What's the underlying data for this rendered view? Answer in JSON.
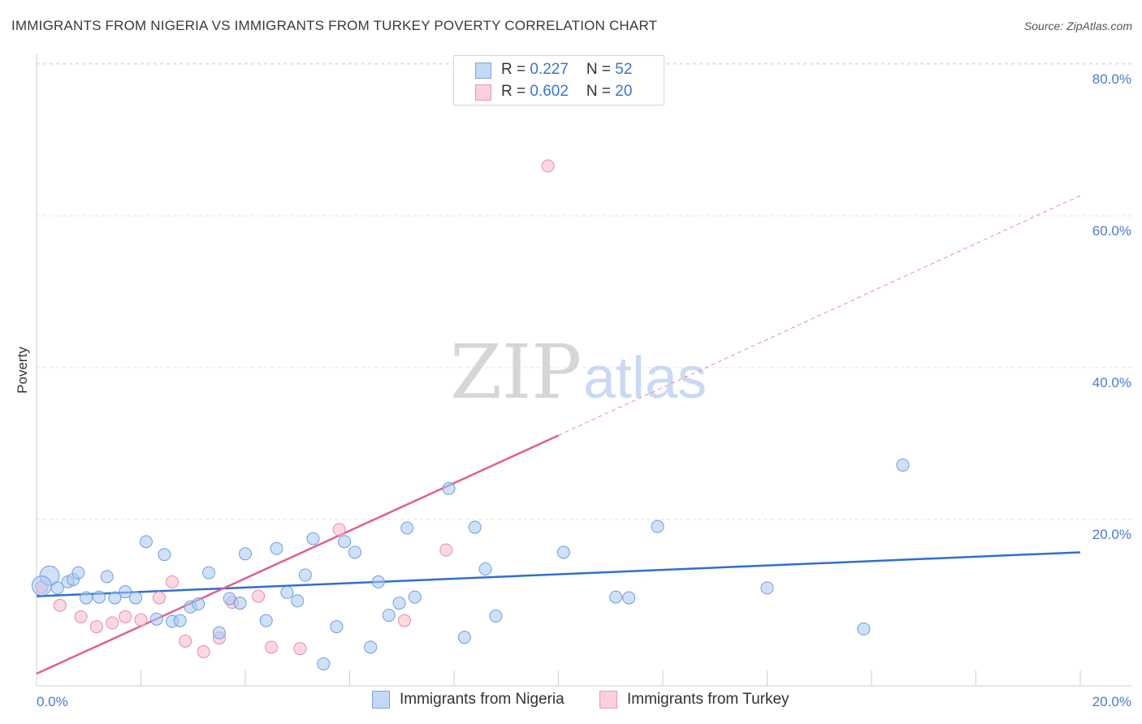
{
  "title": "IMMIGRANTS FROM NIGERIA VS IMMIGRANTS FROM TURKEY POVERTY CORRELATION CHART",
  "source": "Source: ZipAtlas.com",
  "watermark": {
    "zip": "ZIP",
    "atlas": "atlas"
  },
  "legend_top": [
    {
      "r_label": "R = ",
      "r_value": "0.227",
      "n_label": "N = ",
      "n_value": "52",
      "color": "#a9c8f0",
      "border": "#6b9ee0"
    },
    {
      "r_label": "R = ",
      "r_value": "0.602",
      "n_label": "N = ",
      "n_value": "20",
      "color": "#f7c0d2",
      "border": "#e88aaa"
    }
  ],
  "legend_bottom": [
    {
      "label": "Immigrants from Nigeria",
      "color": "#c3d8f5",
      "border": "#7da6e0"
    },
    {
      "label": "Immigrants from Turkey",
      "color": "#f9cfdc",
      "border": "#e899b3"
    }
  ],
  "colors": {
    "nigeria_fill": "#a9c8f0",
    "nigeria_stroke": "#6b9ee0",
    "nigeria_line": "#2f6fd1",
    "turkey_fill": "#f7c0d2",
    "turkey_stroke": "#e88aaa",
    "turkey_line": "#e0608f",
    "axis_text": "#4a7bd0",
    "grid": "#e0e0e0"
  },
  "chart_data": {
    "type": "scatter",
    "title": "IMMIGRANTS FROM NIGERIA VS IMMIGRANTS FROM TURKEY POVERTY CORRELATION CHART",
    "xlabel": "",
    "ylabel": "Poverty",
    "xlim": [
      0,
      20
    ],
    "ylim": [
      0,
      82
    ],
    "x_tick_labels": [
      {
        "value": 0,
        "label": "0.0%"
      },
      {
        "value": 20,
        "label": "20.0%"
      }
    ],
    "y_tick_labels": [
      {
        "value": 20,
        "label": "20.0%"
      },
      {
        "value": 40,
        "label": "40.0%"
      },
      {
        "value": 60,
        "label": "60.0%"
      },
      {
        "value": 80,
        "label": "80.0%"
      }
    ],
    "x_minor_ticks": [
      2,
      4,
      6,
      8,
      10,
      12,
      14,
      16,
      18,
      20
    ],
    "series": [
      {
        "name": "Immigrants from Nigeria",
        "r": 0.227,
        "n": 52,
        "trend": {
          "x": [
            0,
            20
          ],
          "y": [
            11.8,
            17.6
          ]
        },
        "points": [
          [
            0.25,
            14.5
          ],
          [
            0.6,
            13.7
          ],
          [
            0.7,
            14.0
          ],
          [
            0.8,
            14.9
          ],
          [
            0.95,
            11.6
          ],
          [
            1.2,
            11.7
          ],
          [
            1.35,
            14.4
          ],
          [
            1.5,
            11.6
          ],
          [
            1.7,
            12.4
          ],
          [
            1.9,
            11.6
          ],
          [
            2.1,
            19.0
          ],
          [
            2.3,
            8.8
          ],
          [
            2.45,
            17.3
          ],
          [
            2.6,
            8.5
          ],
          [
            2.75,
            8.6
          ],
          [
            2.95,
            10.4
          ],
          [
            3.1,
            10.8
          ],
          [
            3.3,
            14.9
          ],
          [
            3.5,
            7.0
          ],
          [
            3.7,
            11.5
          ],
          [
            3.9,
            10.9
          ],
          [
            4.0,
            17.4
          ],
          [
            4.4,
            8.6
          ],
          [
            4.6,
            18.1
          ],
          [
            4.8,
            12.3
          ],
          [
            5.0,
            11.2
          ],
          [
            5.15,
            14.6
          ],
          [
            5.3,
            19.4
          ],
          [
            5.5,
            2.9
          ],
          [
            5.75,
            7.8
          ],
          [
            5.9,
            19.0
          ],
          [
            6.1,
            17.6
          ],
          [
            6.4,
            5.1
          ],
          [
            6.55,
            13.7
          ],
          [
            6.75,
            9.3
          ],
          [
            6.95,
            10.9
          ],
          [
            7.1,
            20.8
          ],
          [
            7.25,
            11.7
          ],
          [
            7.9,
            26.0
          ],
          [
            8.2,
            6.4
          ],
          [
            8.4,
            20.9
          ],
          [
            8.6,
            15.4
          ],
          [
            8.8,
            9.2
          ],
          [
            10.1,
            17.6
          ],
          [
            11.1,
            11.7
          ],
          [
            11.35,
            11.6
          ],
          [
            11.9,
            21.0
          ],
          [
            14.0,
            12.9
          ],
          [
            15.85,
            7.5
          ],
          [
            16.6,
            29.1
          ],
          [
            0.1,
            13.2
          ],
          [
            0.4,
            12.9
          ]
        ]
      },
      {
        "name": "Immigrants from Turkey",
        "r": 0.602,
        "n": 20,
        "trend": {
          "x": [
            0,
            10.0
          ],
          "y": [
            1.6,
            33.0
          ]
        },
        "trend_extended": {
          "x": [
            10.0,
            20.0
          ],
          "y": [
            33.0,
            64.6
          ]
        },
        "points": [
          [
            0.1,
            13.0
          ],
          [
            0.45,
            10.6
          ],
          [
            0.85,
            9.1
          ],
          [
            1.15,
            7.8
          ],
          [
            1.45,
            8.3
          ],
          [
            1.7,
            9.1
          ],
          [
            2.0,
            8.7
          ],
          [
            2.35,
            11.6
          ],
          [
            2.6,
            13.7
          ],
          [
            2.85,
            5.9
          ],
          [
            3.2,
            4.5
          ],
          [
            3.5,
            6.3
          ],
          [
            3.75,
            11.0
          ],
          [
            4.25,
            11.8
          ],
          [
            4.5,
            5.1
          ],
          [
            5.05,
            4.9
          ],
          [
            5.8,
            20.6
          ],
          [
            7.05,
            8.6
          ],
          [
            7.85,
            17.9
          ],
          [
            9.8,
            68.5
          ]
        ]
      }
    ]
  }
}
